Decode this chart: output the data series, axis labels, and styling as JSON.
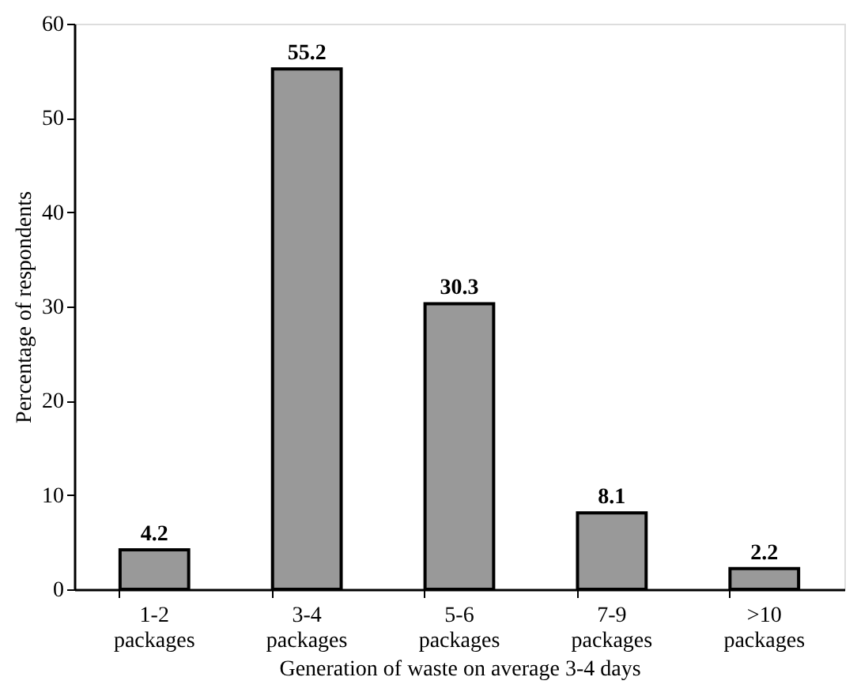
{
  "chart_data": {
    "type": "bar",
    "xlabel": "Generation of waste on average 3-4 days",
    "ylabel": "Percentage of respondents",
    "categories": [
      "1-2 packages",
      "3-4 packages",
      "5-6 packages",
      "7-9 packages",
      ">10 packages"
    ],
    "values": [
      4.2,
      55.2,
      30.3,
      8.1,
      2.2
    ],
    "color": "#999999",
    "ylim": [
      0,
      60
    ],
    "yticks": [
      0,
      10,
      20,
      30,
      40,
      50,
      60
    ],
    "grid": false,
    "data_labels": true
  }
}
